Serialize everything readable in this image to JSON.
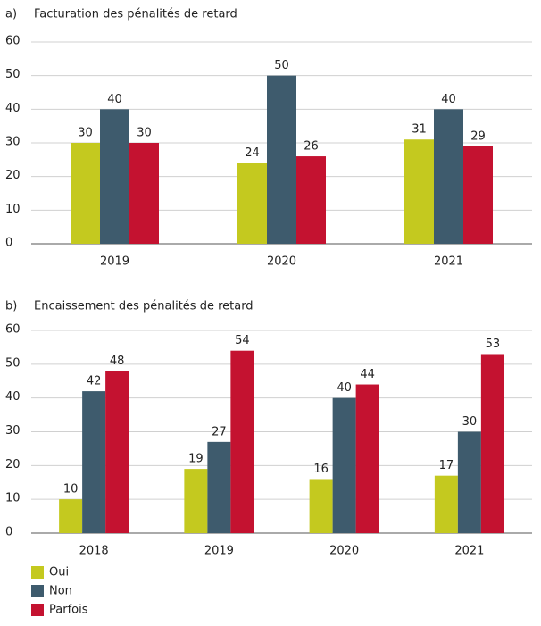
{
  "chart_data": [
    {
      "type": "bar",
      "label": "a)",
      "title": "Facturation des pénalités de retard",
      "categories": [
        "2019",
        "2020",
        "2021"
      ],
      "series": [
        {
          "name": "Oui",
          "color": "#c4c91f",
          "values": [
            30,
            24,
            31
          ]
        },
        {
          "name": "Non",
          "color": "#3e5b6d",
          "values": [
            40,
            50,
            40
          ]
        },
        {
          "name": "Parfois",
          "color": "#c41230",
          "values": [
            30,
            26,
            29
          ]
        }
      ],
      "ylim": [
        0,
        60
      ],
      "yticks": [
        0,
        10,
        20,
        30,
        40,
        50,
        60
      ],
      "grid": true
    },
    {
      "type": "bar",
      "label": "b)",
      "title": "Encaissement des pénalités de retard",
      "categories": [
        "2018",
        "2019",
        "2020",
        "2021"
      ],
      "series": [
        {
          "name": "Oui",
          "color": "#c4c91f",
          "values": [
            10,
            19,
            16,
            17
          ]
        },
        {
          "name": "Non",
          "color": "#3e5b6d",
          "values": [
            42,
            27,
            40,
            30
          ]
        },
        {
          "name": "Parfois",
          "color": "#c41230",
          "values": [
            48,
            54,
            44,
            53
          ]
        }
      ],
      "ylim": [
        0,
        60
      ],
      "yticks": [
        0,
        10,
        20,
        30,
        40,
        50,
        60
      ],
      "grid": true
    }
  ]
}
